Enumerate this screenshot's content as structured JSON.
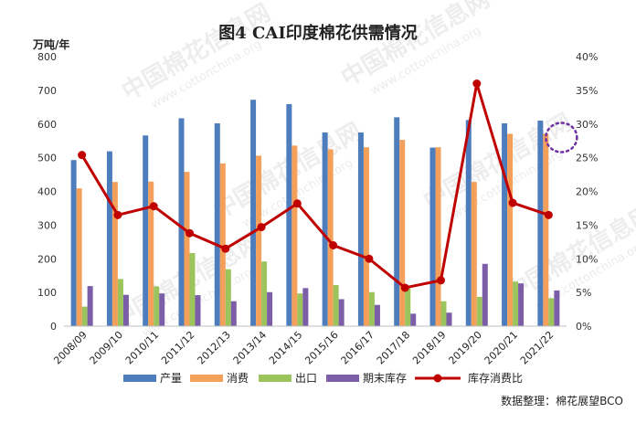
{
  "chart_data": {
    "type": "bar",
    "title": "图4 CAI印度棉花供需情况",
    "ylabel_left": "万吨/年",
    "ylim_left": [
      0,
      800
    ],
    "ylim_right": [
      0,
      40
    ],
    "left_ticks": [
      "0",
      "100",
      "200",
      "300",
      "400",
      "500",
      "600",
      "700",
      "800"
    ],
    "right_ticks": [
      "0%",
      "5%",
      "10%",
      "15%",
      "20%",
      "25%",
      "30%",
      "35%",
      "40%"
    ],
    "categories": [
      "2008/09",
      "2009/10",
      "2010/11",
      "2011/12",
      "2012/13",
      "2013/14",
      "2014/15",
      "2015/16",
      "2016/17",
      "2017/18",
      "2018/19",
      "2019/20",
      "2020/21",
      "2021/22"
    ],
    "series": [
      {
        "name": "产量",
        "type": "bar",
        "axis": "left",
        "color": "#4e7dbe",
        "values": [
          493,
          519,
          566,
          617,
          602,
          672,
          659,
          575,
          575,
          620,
          530,
          612,
          602,
          610
        ]
      },
      {
        "name": "消费",
        "type": "bar",
        "axis": "left",
        "color": "#f5a05a",
        "values": [
          409,
          428,
          429,
          458,
          483,
          506,
          536,
          525,
          531,
          553,
          531,
          428,
          571,
          571
        ]
      },
      {
        "name": "出口",
        "type": "bar",
        "axis": "left",
        "color": "#9bc45c",
        "values": [
          58,
          140,
          118,
          217,
          169,
          192,
          97,
          122,
          101,
          112,
          74,
          87,
          132,
          83
        ]
      },
      {
        "name": "期末库存",
        "type": "bar",
        "axis": "left",
        "color": "#7b5ea7",
        "values": [
          119,
          93,
          97,
          92,
          74,
          101,
          113,
          80,
          63,
          37,
          40,
          185,
          127,
          106
        ]
      },
      {
        "name": "库存消费比",
        "type": "line",
        "axis": "right",
        "color": "#c00000",
        "values": [
          25.4,
          16.5,
          17.8,
          13.8,
          11.5,
          14.7,
          18.2,
          12.0,
          10.0,
          5.7,
          6.8,
          36.0,
          18.3,
          16.5
        ]
      }
    ],
    "legend_position": "bottom",
    "annotation": {
      "type": "dotted-circle",
      "color": "#7030a0",
      "target_category": "2021/22"
    }
  },
  "source": "数据整理：棉花展望BCO",
  "watermark": {
    "text": "中国棉花信息网",
    "url": "www.cottonchina.org"
  }
}
